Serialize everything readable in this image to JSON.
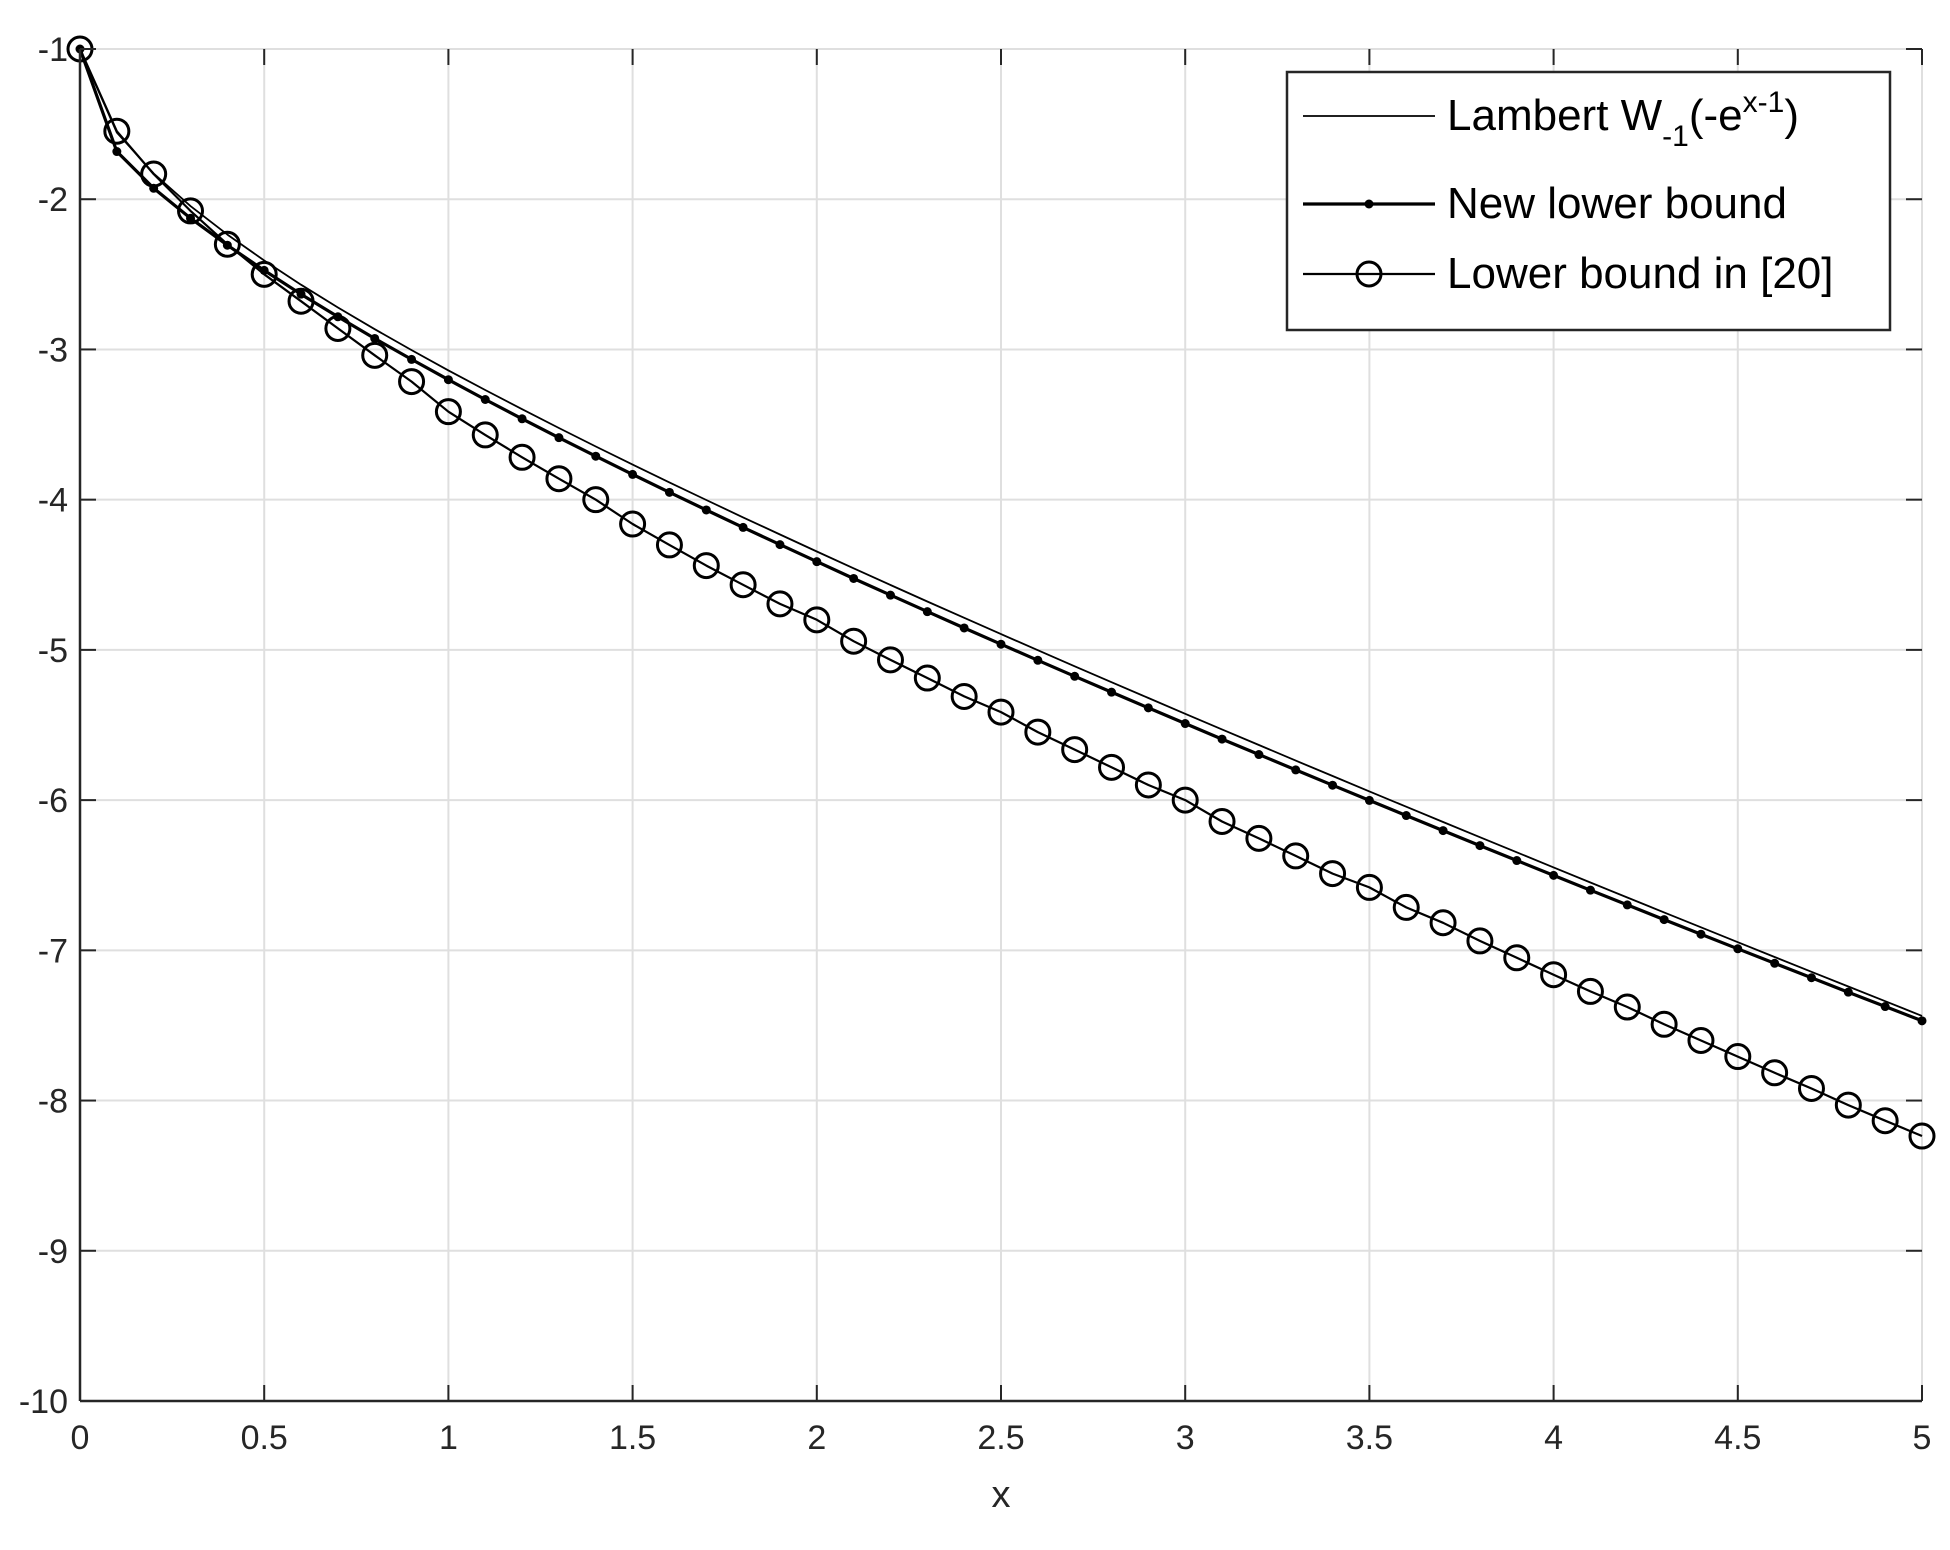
{
  "chart_data": {
    "type": "line",
    "title": "",
    "xlabel": "x",
    "ylabel": "",
    "xlim": [
      0,
      5
    ],
    "ylim": [
      -10,
      -1
    ],
    "grid": true,
    "legend_position": "top-right",
    "x_ticks": [
      "0",
      "0.5",
      "1",
      "1.5",
      "2",
      "2.5",
      "3",
      "3.5",
      "4",
      "4.5",
      "5"
    ],
    "y_ticks": [
      "-1",
      "-2",
      "-3",
      "-4",
      "-5",
      "-6",
      "-7",
      "-8",
      "-9",
      "-10"
    ],
    "x": [
      0,
      0.1,
      0.2,
      0.3,
      0.4,
      0.5,
      0.6,
      0.7,
      0.8,
      0.9,
      1.0,
      1.1,
      1.2,
      1.3,
      1.4,
      1.5,
      1.6,
      1.7,
      1.8,
      1.9,
      2.0,
      2.1,
      2.2,
      2.3,
      2.4,
      2.5,
      2.6,
      2.7,
      2.8,
      2.9,
      3.0,
      3.1,
      3.2,
      3.3,
      3.4,
      3.5,
      3.6,
      3.7,
      3.8,
      3.9,
      4.0,
      4.1,
      4.2,
      4.3,
      4.4,
      4.5,
      4.6,
      4.7,
      4.8,
      4.9,
      5.0
    ],
    "series": [
      {
        "name": "Lambert W-1(-e^(x-1))",
        "legend_parts": {
          "main": "Lambert W",
          "sub": "-1",
          "paren_open": "(-e",
          "sup": "x-1",
          "paren_close": ")"
        },
        "marker": "none",
        "values": [
          -1.0,
          -1.5559,
          -1.8286,
          -2.0459,
          -2.2356,
          -2.4082,
          -2.569,
          -2.7208,
          -2.8655,
          -3.0046,
          -3.1394,
          -3.2703,
          -3.3981,
          -3.5232,
          -3.6459,
          -3.7665,
          -3.8852,
          -4.0023,
          -4.1179,
          -4.2321,
          -4.3451,
          -4.457,
          -4.5678,
          -4.6777,
          -4.7867,
          -4.8949,
          -5.0023,
          -5.109,
          -5.2151,
          -5.3205,
          -5.4253,
          -5.5296,
          -5.6334,
          -5.7367,
          -5.8395,
          -5.9419,
          -6.0439,
          -6.1455,
          -6.2467,
          -6.3475,
          -6.448,
          -6.5482,
          -6.648,
          -6.7476,
          -6.8468,
          -6.9458,
          -7.0444,
          -7.1428,
          -7.241,
          -7.3389,
          -7.4365
        ]
      },
      {
        "name": "New lower bound",
        "marker": "dot",
        "values": [
          -1.0,
          -1.6825,
          -1.927,
          -2.1265,
          -2.3063,
          -2.4738,
          -2.632,
          -2.7826,
          -2.9271,
          -3.0665,
          -3.2017,
          -3.3332,
          -3.4616,
          -3.5873,
          -3.7106,
          -3.8318,
          -3.9511,
          -4.0687,
          -4.1847,
          -4.2993,
          -4.4125,
          -4.5246,
          -4.6355,
          -4.7454,
          -4.8542,
          -4.9622,
          -5.0693,
          -5.1756,
          -5.2812,
          -5.386,
          -5.4902,
          -5.5937,
          -5.6966,
          -5.7989,
          -5.9007,
          -6.0019,
          -6.1027,
          -6.2029,
          -6.3027,
          -6.4021,
          -6.501,
          -6.5995,
          -6.6976,
          -6.7953,
          -6.8926,
          -6.9896,
          -7.0862,
          -7.1825,
          -7.2785,
          -7.3741,
          -7.4694
        ]
      },
      {
        "name": "Lower bound in [20]",
        "marker": "circle",
        "values": [
          -1.0,
          -1.5472,
          -1.8325,
          -2.0778,
          -2.2998,
          -2.5,
          -2.6789,
          -2.8602,
          -3.0392,
          -3.2139,
          -3.4142,
          -3.569,
          -3.7178,
          -3.8606,
          -4.0,
          -4.1623,
          -4.3011,
          -4.4387,
          -4.5664,
          -4.6937,
          -4.8,
          -4.9422,
          -5.0664,
          -5.1873,
          -5.3099,
          -5.4142,
          -5.5472,
          -5.6638,
          -5.7818,
          -5.8992,
          -6.0,
          -6.1422,
          -6.2547,
          -6.3716,
          -6.489,
          -6.5811,
          -6.7142,
          -6.8164,
          -6.9374,
          -7.0496,
          -7.1623,
          -7.2735,
          -7.3775,
          -7.4924,
          -7.6003,
          -7.7071,
          -7.8151,
          -7.9195,
          -8.0302,
          -8.1344,
          -8.2361
        ]
      }
    ]
  }
}
